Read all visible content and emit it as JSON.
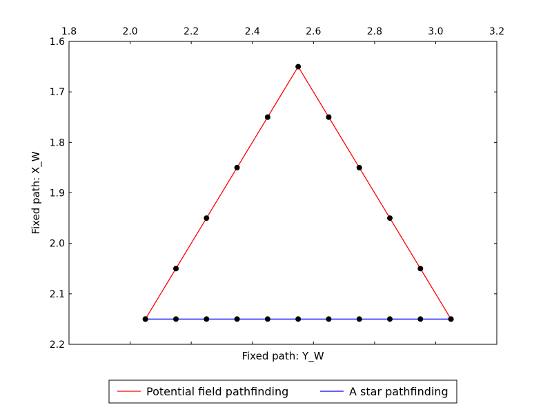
{
  "chart_data": {
    "type": "line",
    "title": "",
    "xlabel": "Fixed path: Y_W",
    "ylabel": "Fixed path: X_W",
    "xlim": [
      1.8,
      3.2
    ],
    "ylim": [
      1.6,
      2.2
    ],
    "y_inverted": true,
    "x_axis_position": "top",
    "x_ticks": [
      "1.8",
      "2.0",
      "2.2",
      "2.4",
      "2.6",
      "2.8",
      "3.0",
      "3.2"
    ],
    "y_ticks": [
      "1.6",
      "1.7",
      "1.8",
      "1.9",
      "2.0",
      "2.1",
      "2.2"
    ],
    "grid": false,
    "legend_position": "bottom-center",
    "series": [
      {
        "name": "Potential field pathfinding",
        "color": "#ff0000",
        "x": [
          2.05,
          2.15,
          2.25,
          2.35,
          2.45,
          2.55,
          2.65,
          2.75,
          2.85,
          2.95,
          3.05
        ],
        "y": [
          2.15,
          2.05,
          1.95,
          1.85,
          1.75,
          1.65,
          1.75,
          1.85,
          1.95,
          2.05,
          2.15
        ]
      },
      {
        "name": "A star pathfinding",
        "color": "#0000ff",
        "x": [
          2.05,
          2.15,
          2.25,
          2.35,
          2.45,
          2.55,
          2.65,
          2.75,
          2.85,
          2.95,
          3.05
        ],
        "y": [
          2.15,
          2.15,
          2.15,
          2.15,
          2.15,
          2.15,
          2.15,
          2.15,
          2.15,
          2.15,
          2.15
        ]
      }
    ],
    "marker_color": "#000000"
  }
}
